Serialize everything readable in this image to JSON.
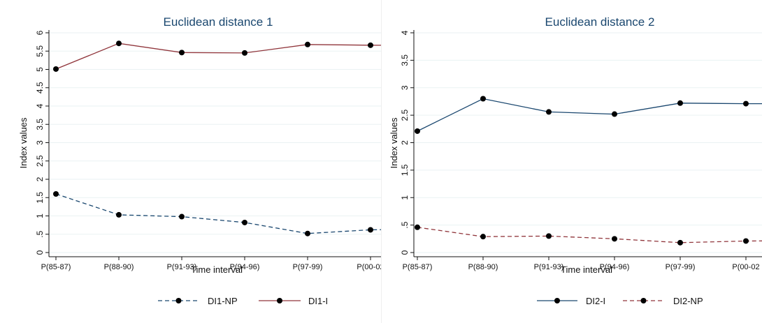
{
  "chart_data": [
    {
      "type": "line",
      "title": "Euclidean distance 1",
      "xlabel": "Time interval",
      "ylabel": "Index values",
      "categories": [
        "P(85-87)",
        "P(88-90)",
        "P(91-93)",
        "P(94-96)",
        "P(97-99)",
        "P(00-02"
      ],
      "yticks": [
        "0",
        ".5",
        "1",
        "1.5",
        "2",
        "2.5",
        "3",
        "3.5",
        "4",
        "4.5",
        "5",
        "5.5",
        "6"
      ],
      "ylim": [
        0,
        6
      ],
      "grid": true,
      "legend_position": "bottom",
      "series": [
        {
          "name": "DI1-NP",
          "values": [
            1.6,
            1.03,
            0.98,
            0.82,
            0.52,
            0.62
          ],
          "color": "#1a476f",
          "dash": "dashed"
        },
        {
          "name": "DI1-I",
          "values": [
            5.01,
            5.71,
            5.46,
            5.45,
            5.68,
            5.66
          ],
          "color": "#90353b",
          "dash": "solid"
        }
      ]
    },
    {
      "type": "line",
      "title": "Euclidean distance 2",
      "xlabel": "Time interval",
      "ylabel": "Index values",
      "categories": [
        "P(85-87)",
        "P(88-90)",
        "P(91-93)",
        "P(94-96)",
        "P(97-99)",
        "P(00-02"
      ],
      "yticks": [
        "0",
        ".5",
        "1",
        "1.5",
        "2",
        "2.5",
        "3",
        "3.5",
        "4"
      ],
      "ylim": [
        0,
        4
      ],
      "grid": true,
      "legend_position": "bottom",
      "series": [
        {
          "name": "DI2-I",
          "values": [
            2.21,
            2.8,
            2.56,
            2.52,
            2.72,
            2.71
          ],
          "color": "#1a476f",
          "dash": "solid"
        },
        {
          "name": "DI2-NP",
          "values": [
            0.46,
            0.29,
            0.3,
            0.25,
            0.18,
            0.21
          ],
          "color": "#90353b",
          "dash": "dashed"
        }
      ]
    }
  ]
}
